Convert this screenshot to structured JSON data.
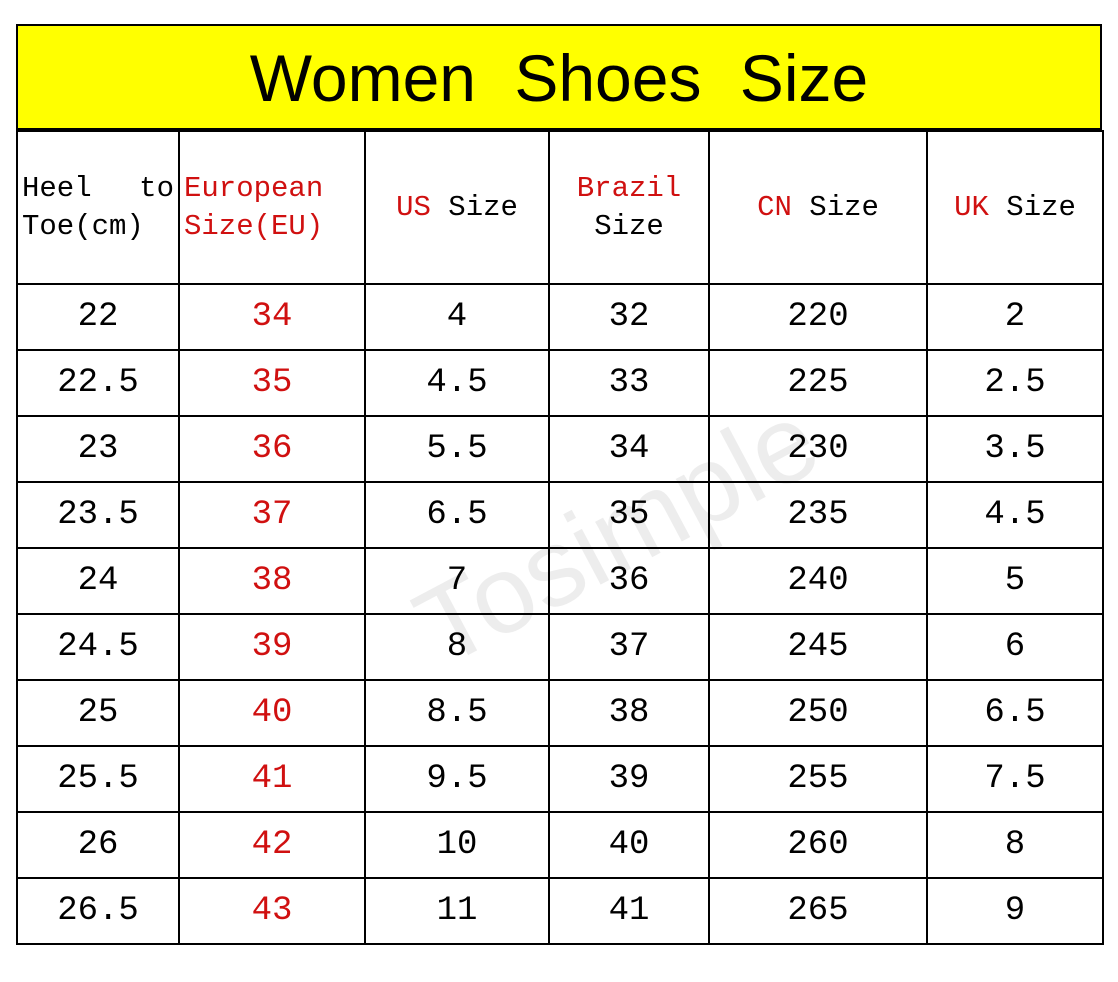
{
  "header": {
    "title": "Women Shoes Size"
  },
  "watermark": "Tosimple",
  "table": {
    "columns": [
      {
        "lines": [
          [
            {
              "text": "Heel  to",
              "color": "#000000"
            }
          ],
          [
            {
              "text": "Toe(cm)",
              "color": "#000000"
            }
          ]
        ],
        "align": "left",
        "value_color": "#000000"
      },
      {
        "lines": [
          [
            {
              "text": "European",
              "color": "#d01010"
            }
          ],
          [
            {
              "text": "Size(EU)",
              "color": "#d01010"
            }
          ]
        ],
        "align": "left",
        "value_color": "#d01010"
      },
      {
        "lines": [
          [
            {
              "text": "US",
              "color": "#d01010"
            },
            {
              "text": "Size",
              "color": "#000000"
            }
          ]
        ],
        "align": "center",
        "value_color": "#000000"
      },
      {
        "lines": [
          [
            {
              "text": "Brazil",
              "color": "#d01010"
            }
          ],
          [
            {
              "text": "Size",
              "color": "#000000"
            }
          ]
        ],
        "align": "center",
        "value_color": "#000000"
      },
      {
        "lines": [
          [
            {
              "text": "CN",
              "color": "#d01010"
            },
            {
              "text": "Size",
              "color": "#000000"
            }
          ]
        ],
        "align": "center",
        "value_color": "#000000"
      },
      {
        "lines": [
          [
            {
              "text": "UK",
              "color": "#d01010"
            },
            {
              "text": "Size",
              "color": "#000000"
            }
          ]
        ],
        "align": "center",
        "value_color": "#000000"
      }
    ],
    "rows": [
      [
        "22",
        "34",
        "4",
        "32",
        "220",
        "2"
      ],
      [
        "22.5",
        "35",
        "4.5",
        "33",
        "225",
        "2.5"
      ],
      [
        "23",
        "36",
        "5.5",
        "34",
        "230",
        "3.5"
      ],
      [
        "23.5",
        "37",
        "6.5",
        "35",
        "235",
        "4.5"
      ],
      [
        "24",
        "38",
        "7",
        "36",
        "240",
        "5"
      ],
      [
        "24.5",
        "39",
        "8",
        "37",
        "245",
        "6"
      ],
      [
        "25",
        "40",
        "8.5",
        "38",
        "250",
        "6.5"
      ],
      [
        "25.5",
        "41",
        "9.5",
        "39",
        "255",
        "7.5"
      ],
      [
        "26",
        "42",
        "10",
        "40",
        "260",
        "8"
      ],
      [
        "26.5",
        "43",
        "11",
        "41",
        "265",
        "9"
      ]
    ]
  }
}
